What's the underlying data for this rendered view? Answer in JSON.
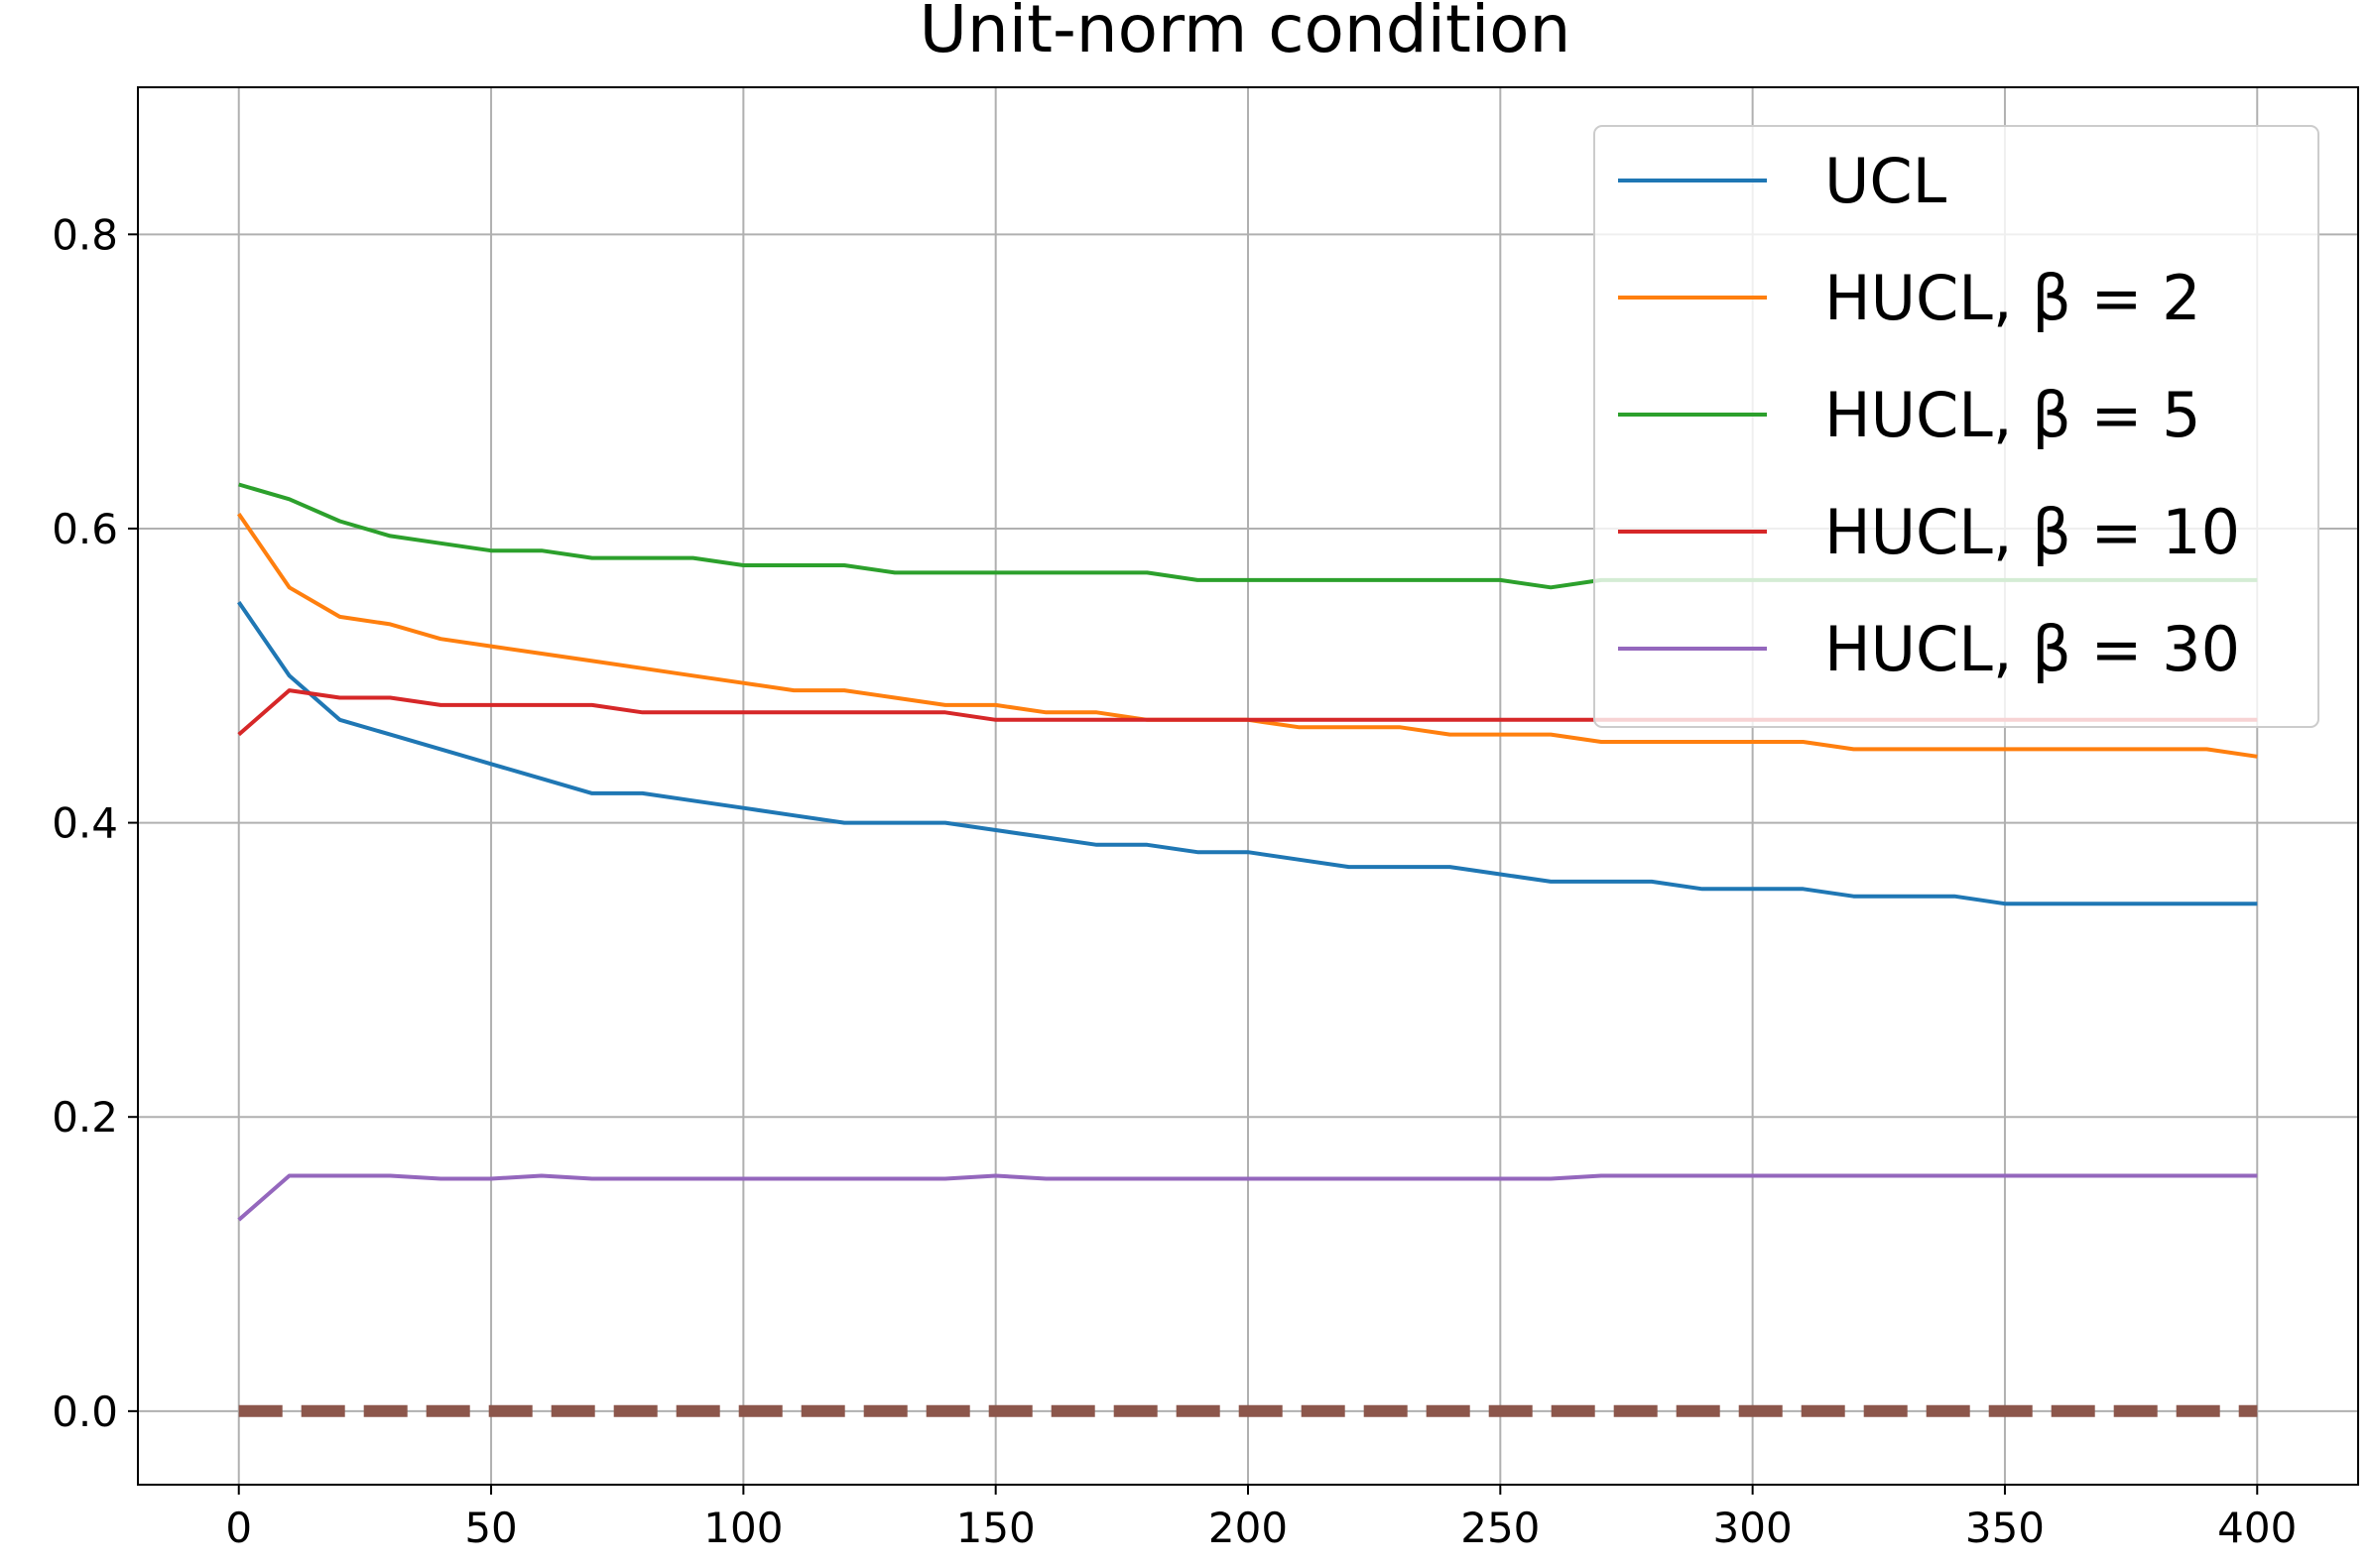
{
  "chart_data": {
    "type": "line",
    "title": "Unit-norm condition",
    "x": [
      0,
      10,
      20,
      30,
      40,
      50,
      60,
      70,
      80,
      90,
      100,
      110,
      120,
      130,
      140,
      150,
      160,
      170,
      180,
      190,
      200,
      210,
      220,
      230,
      240,
      250,
      260,
      270,
      280,
      290,
      300,
      310,
      320,
      330,
      340,
      350,
      360,
      370,
      380,
      390,
      400
    ],
    "series": [
      {
        "name": "UCL",
        "color": "#1f77b4",
        "values": [
          0.55,
          0.5,
          0.47,
          0.46,
          0.45,
          0.44,
          0.43,
          0.42,
          0.42,
          0.415,
          0.41,
          0.405,
          0.4,
          0.4,
          0.4,
          0.395,
          0.39,
          0.385,
          0.385,
          0.38,
          0.38,
          0.375,
          0.37,
          0.37,
          0.37,
          0.365,
          0.36,
          0.36,
          0.36,
          0.355,
          0.355,
          0.355,
          0.35,
          0.35,
          0.35,
          0.345,
          0.345,
          0.345,
          0.345,
          0.345,
          0.345
        ]
      },
      {
        "name": "HUCL, β = 2",
        "color": "#ff7f0e",
        "values": [
          0.61,
          0.56,
          0.54,
          0.535,
          0.525,
          0.52,
          0.515,
          0.51,
          0.505,
          0.5,
          0.495,
          0.49,
          0.49,
          0.485,
          0.48,
          0.48,
          0.475,
          0.475,
          0.47,
          0.47,
          0.47,
          0.465,
          0.465,
          0.465,
          0.46,
          0.46,
          0.46,
          0.455,
          0.455,
          0.455,
          0.455,
          0.455,
          0.45,
          0.45,
          0.45,
          0.45,
          0.45,
          0.45,
          0.45,
          0.45,
          0.445
        ]
      },
      {
        "name": "HUCL, β = 5",
        "color": "#2ca02c",
        "values": [
          0.63,
          0.62,
          0.605,
          0.595,
          0.59,
          0.585,
          0.585,
          0.58,
          0.58,
          0.58,
          0.575,
          0.575,
          0.575,
          0.57,
          0.57,
          0.57,
          0.57,
          0.57,
          0.57,
          0.565,
          0.565,
          0.565,
          0.565,
          0.565,
          0.565,
          0.565,
          0.56,
          0.565,
          0.565,
          0.565,
          0.565,
          0.565,
          0.565,
          0.565,
          0.565,
          0.565,
          0.565,
          0.565,
          0.565,
          0.565,
          0.565
        ]
      },
      {
        "name": "HUCL, β = 10",
        "color": "#d62728",
        "values": [
          0.46,
          0.49,
          0.485,
          0.485,
          0.48,
          0.48,
          0.48,
          0.48,
          0.475,
          0.475,
          0.475,
          0.475,
          0.475,
          0.475,
          0.475,
          0.47,
          0.47,
          0.47,
          0.47,
          0.47,
          0.47,
          0.47,
          0.47,
          0.47,
          0.47,
          0.47,
          0.47,
          0.47,
          0.47,
          0.47,
          0.47,
          0.47,
          0.47,
          0.47,
          0.47,
          0.47,
          0.47,
          0.47,
          0.47,
          0.47,
          0.47
        ]
      },
      {
        "name": "HUCL, β = 30",
        "color": "#9467bd",
        "values": [
          0.13,
          0.16,
          0.16,
          0.16,
          0.158,
          0.158,
          0.16,
          0.158,
          0.158,
          0.158,
          0.158,
          0.158,
          0.158,
          0.158,
          0.158,
          0.16,
          0.158,
          0.158,
          0.158,
          0.158,
          0.158,
          0.158,
          0.158,
          0.158,
          0.158,
          0.158,
          0.158,
          0.16,
          0.16,
          0.16,
          0.16,
          0.16,
          0.16,
          0.16,
          0.16,
          0.16,
          0.16,
          0.16,
          0.16,
          0.16,
          0.16
        ]
      },
      {
        "color": "#8c564b",
        "dashed": true,
        "values": [
          0,
          0,
          0,
          0,
          0,
          0,
          0,
          0,
          0,
          0,
          0,
          0,
          0,
          0,
          0,
          0,
          0,
          0,
          0,
          0,
          0,
          0,
          0,
          0,
          0,
          0,
          0,
          0,
          0,
          0,
          0,
          0,
          0,
          0,
          0,
          0,
          0,
          0,
          0,
          0,
          0
        ]
      }
    ],
    "xlim": [
      -20,
      420
    ],
    "ylim": [
      -0.05,
      0.9
    ],
    "xticks": [
      0,
      50,
      100,
      150,
      200,
      250,
      300,
      350,
      400
    ],
    "yticks": [
      {
        "value": 0,
        "label": "0.0"
      },
      {
        "value": 0.2,
        "label": "0.2"
      },
      {
        "value": 0.4,
        "label": "0.4"
      },
      {
        "value": 0.6,
        "label": "0.6"
      },
      {
        "value": 0.8,
        "label": "0.8"
      }
    ],
    "grid": true,
    "legend": "upper right"
  }
}
